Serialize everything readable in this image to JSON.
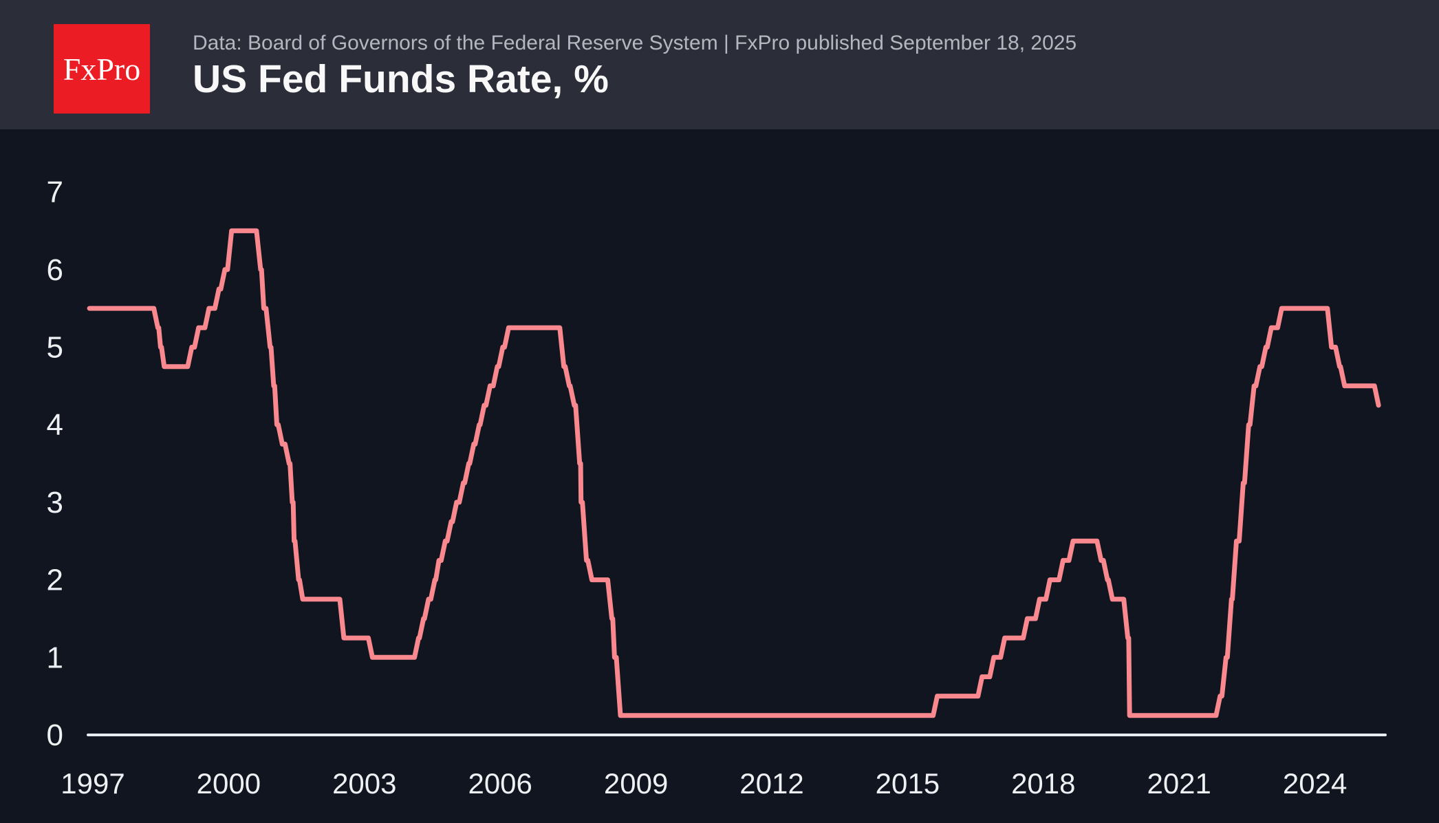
{
  "header": {
    "logo_text": "FxPro",
    "source_line": "Data: Board of Governors of the Federal Reserve System | FxPro published September 18, 2025",
    "title": "US Fed Funds Rate, %"
  },
  "colors": {
    "header_bg": "#2b2d38",
    "chart_bg": "#101520",
    "line": "#f9898f",
    "axis_line": "#e9ecf1",
    "tick_text": "#eef0f3",
    "subtitle_text": "#b5b7bf",
    "title_text": "#f8f8f9",
    "logo_bg": "#ec1c24",
    "logo_text": "#ffffff"
  },
  "chart_data": {
    "type": "line",
    "title": "US Fed Funds Rate, %",
    "xlabel": "",
    "ylabel": "",
    "grid": false,
    "legend_position": "none",
    "xlim": [
      1996.8,
      2025.95
    ],
    "ylim": [
      0,
      7.5
    ],
    "x_ticks": [
      "1997",
      "2000",
      "2003",
      "2006",
      "2009",
      "2012",
      "2015",
      "2018",
      "2021",
      "2024"
    ],
    "x_tick_years": [
      1997,
      2000,
      2003,
      2006,
      2009,
      2012,
      2015,
      2018,
      2021,
      2024
    ],
    "y_ticks": [
      "0",
      "1",
      "2",
      "3",
      "4",
      "5",
      "6",
      "7"
    ],
    "y_tick_values": [
      0,
      1,
      2,
      3,
      4,
      5,
      6,
      7
    ],
    "series": [
      {
        "name": "US Fed Funds Rate, %",
        "style": "step",
        "step_points": [
          [
            1997.23,
            5.5
          ],
          [
            1998.74,
            5.25
          ],
          [
            1998.8,
            5.0
          ],
          [
            1998.88,
            4.75
          ],
          [
            1999.49,
            5.0
          ],
          [
            1999.64,
            5.25
          ],
          [
            1999.87,
            5.5
          ],
          [
            2000.09,
            5.75
          ],
          [
            2000.22,
            6.0
          ],
          [
            2000.37,
            6.5
          ],
          [
            2001.01,
            6.0
          ],
          [
            2001.08,
            5.5
          ],
          [
            2001.22,
            5.0
          ],
          [
            2001.3,
            4.5
          ],
          [
            2001.37,
            4.0
          ],
          [
            2001.49,
            3.75
          ],
          [
            2001.64,
            3.5
          ],
          [
            2001.71,
            3.0
          ],
          [
            2001.75,
            2.5
          ],
          [
            2001.85,
            2.0
          ],
          [
            2001.94,
            1.75
          ],
          [
            2002.85,
            1.25
          ],
          [
            2003.48,
            1.0
          ],
          [
            2004.5,
            1.25
          ],
          [
            2004.61,
            1.5
          ],
          [
            2004.72,
            1.75
          ],
          [
            2004.86,
            2.0
          ],
          [
            2004.95,
            2.25
          ],
          [
            2005.09,
            2.5
          ],
          [
            2005.22,
            2.75
          ],
          [
            2005.34,
            3.0
          ],
          [
            2005.49,
            3.25
          ],
          [
            2005.61,
            3.5
          ],
          [
            2005.72,
            3.75
          ],
          [
            2005.84,
            4.0
          ],
          [
            2005.95,
            4.25
          ],
          [
            2006.08,
            4.5
          ],
          [
            2006.24,
            4.75
          ],
          [
            2006.36,
            5.0
          ],
          [
            2006.49,
            5.25
          ],
          [
            2007.71,
            4.75
          ],
          [
            2007.83,
            4.5
          ],
          [
            2007.94,
            4.25
          ],
          [
            2008.06,
            3.5
          ],
          [
            2008.09,
            3.0
          ],
          [
            2008.21,
            2.25
          ],
          [
            2008.33,
            2.0
          ],
          [
            2008.77,
            1.5
          ],
          [
            2008.83,
            1.0
          ],
          [
            2008.96,
            0.25
          ],
          [
            2015.96,
            0.5
          ],
          [
            2016.95,
            0.75
          ],
          [
            2017.21,
            1.0
          ],
          [
            2017.45,
            1.25
          ],
          [
            2017.95,
            1.5
          ],
          [
            2018.22,
            1.75
          ],
          [
            2018.45,
            2.0
          ],
          [
            2018.74,
            2.25
          ],
          [
            2018.96,
            2.5
          ],
          [
            2019.58,
            2.25
          ],
          [
            2019.72,
            2.0
          ],
          [
            2019.83,
            1.75
          ],
          [
            2020.17,
            1.25
          ],
          [
            2020.21,
            0.25
          ],
          [
            2022.21,
            0.5
          ],
          [
            2022.34,
            1.0
          ],
          [
            2022.46,
            1.75
          ],
          [
            2022.57,
            2.5
          ],
          [
            2022.72,
            3.25
          ],
          [
            2022.84,
            4.0
          ],
          [
            2022.96,
            4.5
          ],
          [
            2023.09,
            4.75
          ],
          [
            2023.22,
            5.0
          ],
          [
            2023.34,
            5.25
          ],
          [
            2023.57,
            5.5
          ],
          [
            2024.67,
            5.0
          ],
          [
            2024.85,
            4.75
          ],
          [
            2024.96,
            4.5
          ],
          [
            2025.71,
            4.25
          ]
        ]
      }
    ]
  }
}
